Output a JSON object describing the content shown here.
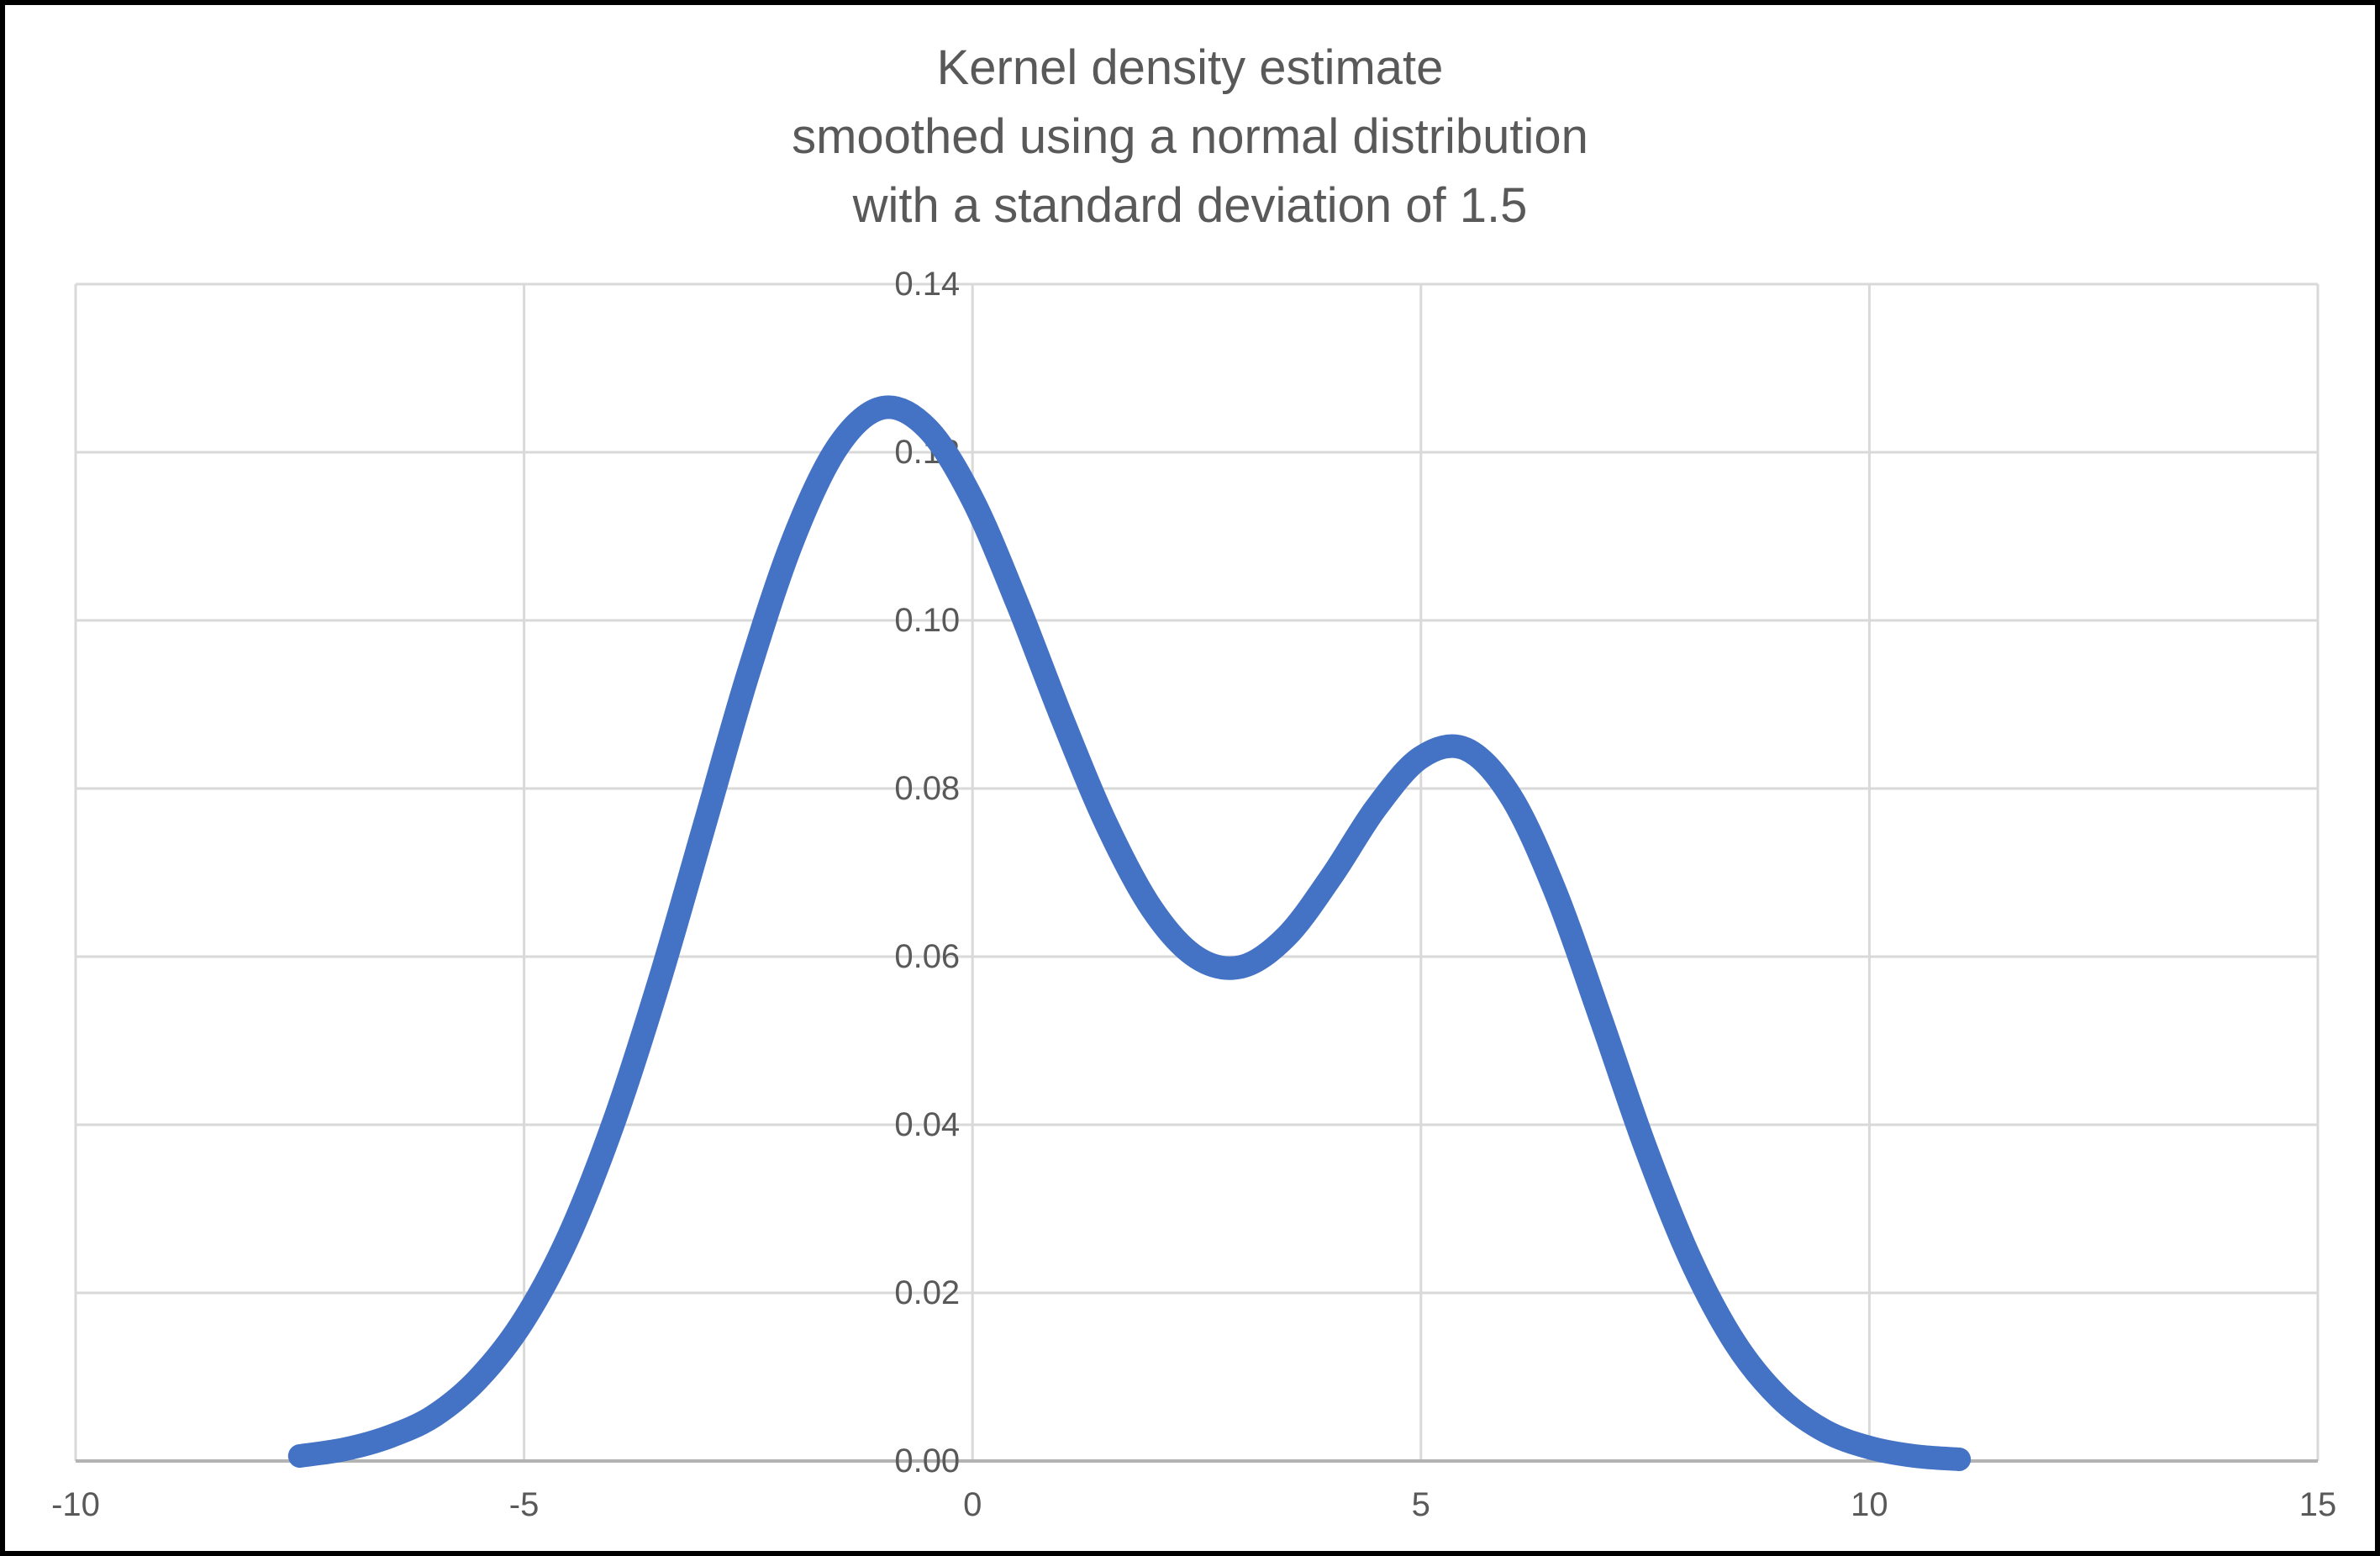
{
  "frame": {
    "background": "#ffffff",
    "border_color": "#000000"
  },
  "colors": {
    "curve": "#4472C4",
    "gridline": "#D9D9D9",
    "axis_line": "#B3B3B3",
    "text": "#595959"
  },
  "chart_data": {
    "type": "line",
    "title": "Kernel density estimate smoothed using a normal distribution with a standard deviation of 1.5",
    "title_lines": [
      "Kernel density estimate",
      "smoothed using a normal distribution",
      "with a standard deviation of 1.5"
    ],
    "xlabel": "",
    "ylabel": "",
    "xlim": [
      -10,
      15
    ],
    "ylim": [
      0,
      0.14
    ],
    "grid": true,
    "legend": "none",
    "x_ticks": [
      {
        "value": -10,
        "label": "-10"
      },
      {
        "value": -5,
        "label": "-5"
      },
      {
        "value": 0,
        "label": "0"
      },
      {
        "value": 5,
        "label": "5"
      },
      {
        "value": 10,
        "label": "10"
      },
      {
        "value": 15,
        "label": "15"
      }
    ],
    "y_ticks": [
      {
        "value": 0.0,
        "label": "0.00"
      },
      {
        "value": 0.02,
        "label": "0.02"
      },
      {
        "value": 0.04,
        "label": "0.04"
      },
      {
        "value": 0.06,
        "label": "0.06"
      },
      {
        "value": 0.08,
        "label": "0.08"
      },
      {
        "value": 0.1,
        "label": "0.10"
      },
      {
        "value": 0.12,
        "label": "0.12"
      },
      {
        "value": 0.14,
        "label": "0.14"
      }
    ],
    "series": [
      {
        "name": "Kernel density estimate",
        "color": "#4472C4",
        "stroke_width": 28,
        "x": [
          -7.5,
          -7.0,
          -6.5,
          -6.0,
          -5.5,
          -5.0,
          -4.5,
          -4.0,
          -3.5,
          -3.0,
          -2.5,
          -2.0,
          -1.5,
          -1.0,
          -0.5,
          0.0,
          0.5,
          1.0,
          1.5,
          2.0,
          2.5,
          3.0,
          3.5,
          4.0,
          4.5,
          5.0,
          5.5,
          6.0,
          6.5,
          7.0,
          7.5,
          8.0,
          8.5,
          9.0,
          9.5,
          10.0,
          10.5,
          11.0
        ],
        "y": [
          0.0006,
          0.0014,
          0.0029,
          0.0054,
          0.0099,
          0.0168,
          0.0268,
          0.0403,
          0.0568,
          0.0752,
          0.0937,
          0.1096,
          0.1207,
          0.1253,
          0.1228,
          0.1144,
          0.102,
          0.0883,
          0.0756,
          0.0657,
          0.0599,
          0.0588,
          0.0624,
          0.0695,
          0.0777,
          0.0837,
          0.0847,
          0.0791,
          0.0677,
          0.0528,
          0.0374,
          0.0241,
          0.0141,
          0.0075,
          0.0036,
          0.0016,
          0.0006,
          0.0002
        ]
      }
    ]
  }
}
